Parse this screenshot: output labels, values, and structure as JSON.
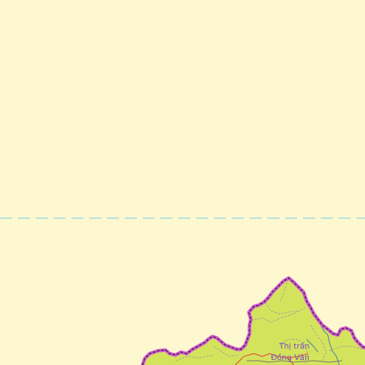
{
  "map": {
    "colors": {
      "background": "#fdf8cf",
      "region_fill": "#d4e35c",
      "border_outer": "#d85ad8",
      "border_inner": "#2b2b2b",
      "parallel_line": "#8fd3ea",
      "district_line": "#9a9aa8",
      "road": "#e0403a",
      "water": "#3b7aa8",
      "label": "#7a4bc4"
    },
    "places": [
      {
        "line1": "Thị trấn",
        "line2": "Đồng Văn"
      }
    ]
  }
}
